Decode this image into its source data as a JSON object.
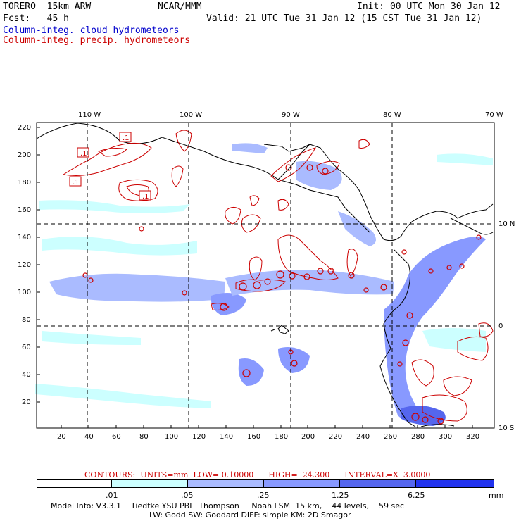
{
  "header": {
    "model": "TORERO  15km ARW",
    "center": "NCAR/MMM",
    "init": "Init: 00 UTC Mon 30 Jan 12",
    "fcst": "Fcst:   45 h",
    "valid": "Valid: 21 UTC Tue 31 Jan 12 (15 CST Tue 31 Jan 12)",
    "field1": "Column-integ. cloud hydrometeors",
    "field2": "Column-integ. precip. hydrometeors"
  },
  "colors": {
    "field1": "#0000cc",
    "field2": "#cc0000",
    "shade": [
      "#ffffff",
      "#ccffff",
      "#aabbff",
      "#8899ff",
      "#5566ee",
      "#2233ee",
      "#0000ff"
    ]
  },
  "axes": {
    "top_lon": [
      "110 W",
      "100 W",
      "90 W",
      "80 W",
      "70 W"
    ],
    "right_lat": [
      "10 N",
      "0",
      "10 S"
    ],
    "left_y": [
      "220",
      "200",
      "180",
      "160",
      "140",
      "120",
      "100",
      "80",
      "60",
      "40",
      "20"
    ],
    "bottom_x": [
      "20",
      "40",
      "60",
      "80",
      "100",
      "120",
      "140",
      "160",
      "180",
      "200",
      "220",
      "240",
      "260",
      "280",
      "300",
      "320"
    ]
  },
  "contour_labels": [
    ".1",
    ".1",
    ".1",
    ".1"
  ],
  "contours_line": "CONTOURS:  UNITS=mm  LOW= 0.10000      HIGH=  24.300      INTERVAL=X  3.0000",
  "legend": {
    "labels": [
      ".01",
      ".05",
      ".25",
      "1.25",
      "6.25"
    ],
    "units": "mm"
  },
  "footer": {
    "line1": "Model Info: V3.3.1    Tiedtke YSU PBL  Thompson     Noah LSM  15 km,    44 levels,    59 sec",
    "line2": "LW: Godd SW: Goddard DIFF: simple KM: 2D Smagor"
  }
}
